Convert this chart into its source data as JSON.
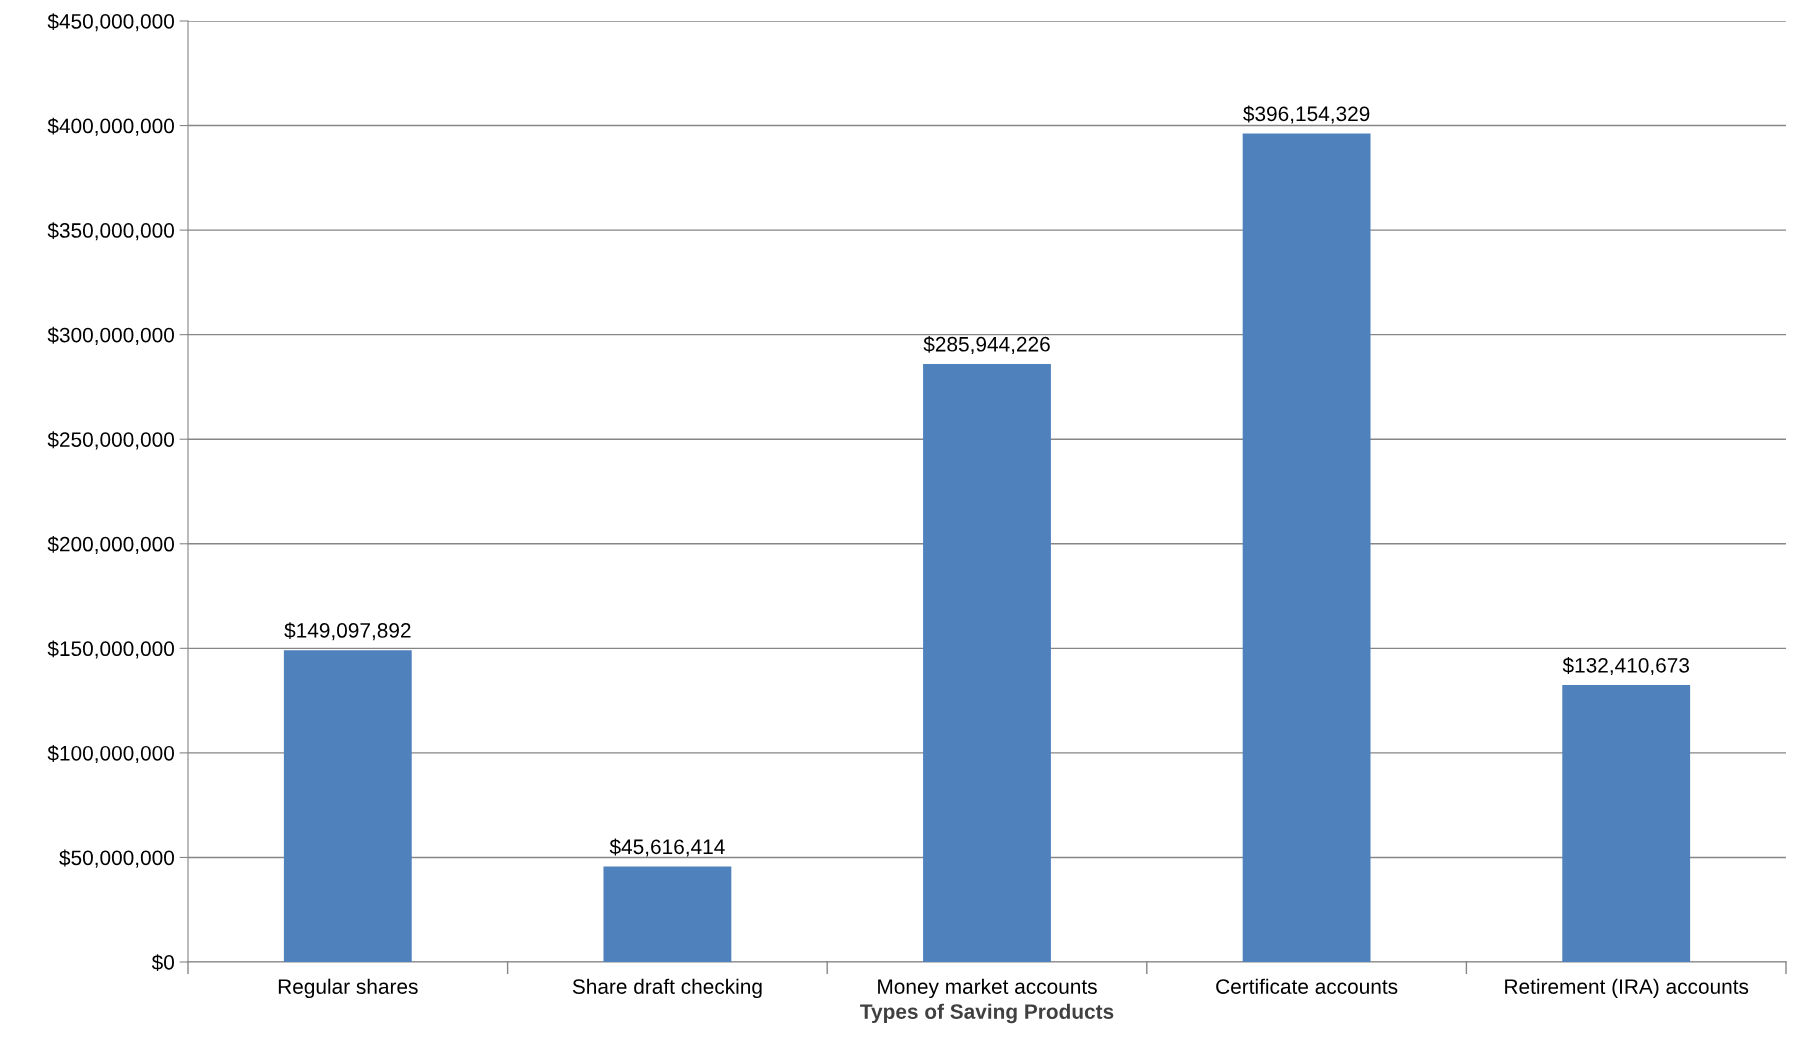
{
  "chart_data": {
    "type": "bar",
    "xlabel": "Types of Saving Products",
    "categories": [
      "Regular shares",
      "Share draft checking",
      "Money market accounts",
      "Certificate accounts",
      "Retirement (IRA) accounts"
    ],
    "values": [
      149097892,
      45616414,
      285944226,
      396154329,
      132410673
    ],
    "value_labels": [
      "$149,097,892",
      "$45,616,414",
      "$285,944,226",
      "$396,154,329",
      "$132,410,673"
    ],
    "color": "#4f81bd",
    "ylim": [
      0,
      450000000
    ],
    "yticks": [
      {
        "value": 0,
        "label": "$0"
      },
      {
        "value": 50000000,
        "label": "$50,000,000"
      },
      {
        "value": 100000000,
        "label": "$100,000,000"
      },
      {
        "value": 150000000,
        "label": "$150,000,000"
      },
      {
        "value": 200000000,
        "label": "$200,000,000"
      },
      {
        "value": 250000000,
        "label": "$250,000,000"
      },
      {
        "value": 300000000,
        "label": "$300,000,000"
      },
      {
        "value": 350000000,
        "label": "$350,000,000"
      },
      {
        "value": 400000000,
        "label": "$400,000,000"
      },
      {
        "value": 450000000,
        "label": "$450,000,000"
      }
    ],
    "grid": "y",
    "legend": false
  }
}
